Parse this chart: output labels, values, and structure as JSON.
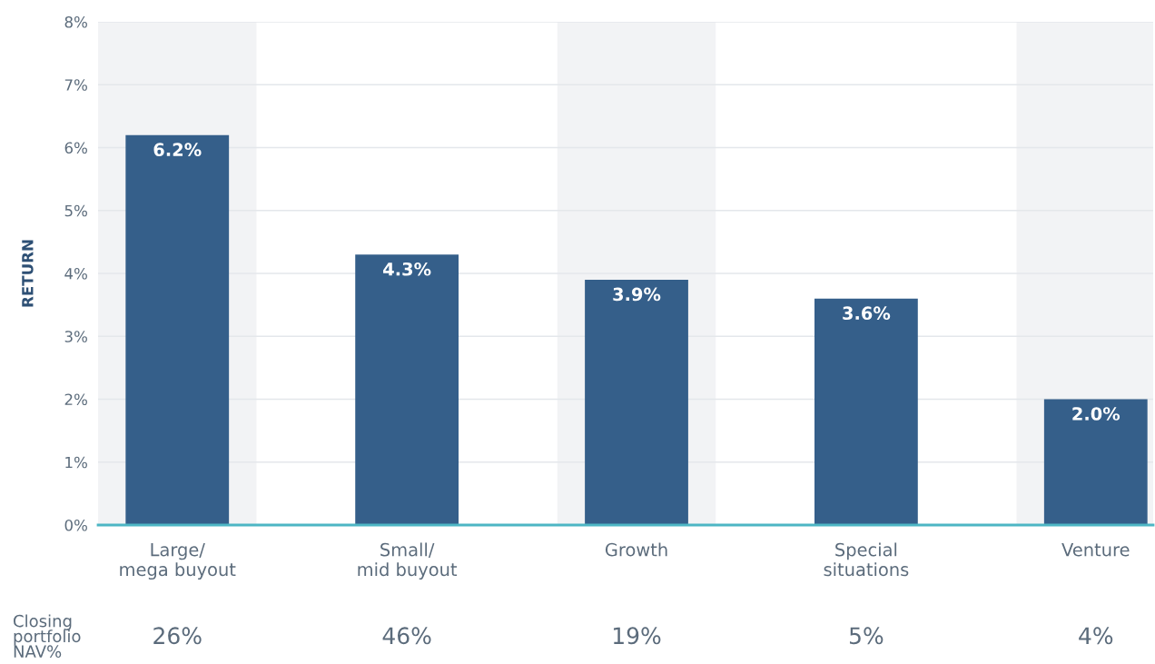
{
  "chart_data": {
    "type": "bar",
    "ylabel": "RETURN",
    "categories": [
      "Large/\nmega buyout",
      "Small/\nmid buyout",
      "Growth",
      "Special\nsituations",
      "Venture"
    ],
    "values": [
      6.2,
      4.3,
      3.9,
      3.6,
      2.0
    ],
    "value_labels": [
      "6.2%",
      "4.3%",
      "3.9%",
      "3.6%",
      "2.0%"
    ],
    "color": "#355f8a",
    "ylim": [
      0,
      8
    ],
    "yticks": [
      {
        "value": 0,
        "label": "0%"
      },
      {
        "value": 1,
        "label": "1%"
      },
      {
        "value": 2,
        "label": "2%"
      },
      {
        "value": 3,
        "label": "3%"
      },
      {
        "value": 4,
        "label": "4%"
      },
      {
        "value": 5,
        "label": "5%"
      },
      {
        "value": 6,
        "label": "6%"
      },
      {
        "value": 7,
        "label": "7%"
      },
      {
        "value": 8,
        "label": "8%"
      }
    ],
    "grid": "y",
    "legend": false,
    "bands": [
      {
        "axis": "x",
        "from": "Large/\nmega buyout",
        "to": "Large/\nmega buyout",
        "color": "#f2f3f5"
      },
      {
        "axis": "x",
        "from": "Growth",
        "to": "Growth",
        "color": "#f2f3f5"
      },
      {
        "axis": "x",
        "from": "Venture",
        "to": "Venture",
        "color": "#f2f3f5"
      }
    ],
    "annotations": [
      "Closing\nportfolio\nNAV%",
      "26%",
      "46%",
      "19%",
      "5%",
      "4%"
    ]
  }
}
